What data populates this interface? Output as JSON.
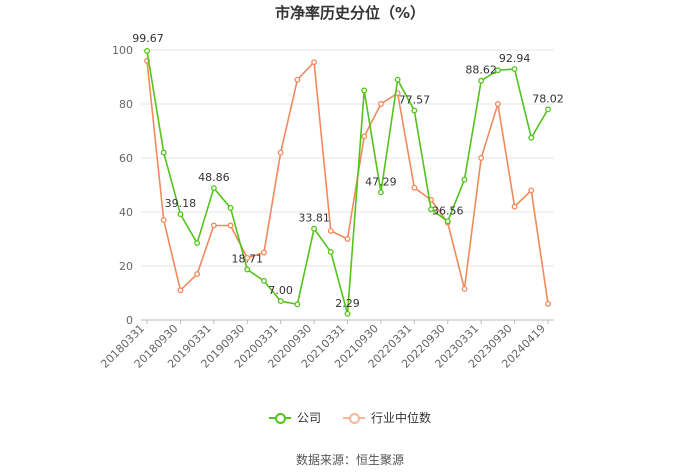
{
  "chart_data": {
    "type": "line",
    "title": "市净率历史分位（%）",
    "ylim": [
      0,
      100
    ],
    "yticks": [
      0,
      20,
      40,
      60,
      80,
      100
    ],
    "grid": true,
    "legend_position": "bottom",
    "x_tick_labels": [
      "20180331",
      "20180930",
      "20190331",
      "20190930",
      "20200331",
      "20200930",
      "20210331",
      "20210930",
      "20220331",
      "20220930",
      "20230331",
      "20230930",
      "20240419"
    ],
    "x_tick_indices": [
      0,
      2,
      4,
      6,
      8,
      10,
      12,
      14,
      16,
      18,
      20,
      22,
      24
    ],
    "point_count": 25,
    "series": [
      {
        "name": "公司",
        "color": "#52c41a",
        "values": [
          99.67,
          62,
          39.18,
          28.5,
          48.86,
          41.5,
          18.71,
          14.5,
          7.0,
          5.8,
          33.81,
          25.2,
          2.29,
          85,
          47.29,
          89,
          77.57,
          41,
          36.56,
          52,
          88.62,
          92.5,
          92.94,
          67.5,
          78.02
        ],
        "labeled_indices": [
          0,
          2,
          4,
          6,
          8,
          10,
          12,
          14,
          16,
          18,
          20,
          22,
          24
        ]
      },
      {
        "name": "行业中位数",
        "color": "#f08a5d",
        "values": [
          96,
          37,
          11,
          17,
          35,
          35,
          23,
          25,
          62,
          89,
          95.5,
          33,
          30,
          68,
          80,
          84,
          49,
          44.5,
          36,
          11.5,
          60,
          80,
          42,
          48,
          6
        ]
      }
    ]
  },
  "source": "数据来源：恒生聚源"
}
